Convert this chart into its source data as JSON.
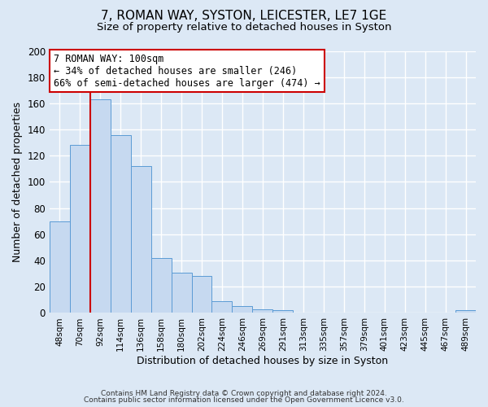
{
  "title": "7, ROMAN WAY, SYSTON, LEICESTER, LE7 1GE",
  "subtitle": "Size of property relative to detached houses in Syston",
  "xlabel": "Distribution of detached houses by size in Syston",
  "ylabel": "Number of detached properties",
  "bar_labels": [
    "48sqm",
    "70sqm",
    "92sqm",
    "114sqm",
    "136sqm",
    "158sqm",
    "180sqm",
    "202sqm",
    "224sqm",
    "246sqm",
    "269sqm",
    "291sqm",
    "313sqm",
    "335sqm",
    "357sqm",
    "379sqm",
    "401sqm",
    "423sqm",
    "445sqm",
    "467sqm",
    "489sqm"
  ],
  "bar_values": [
    70,
    128,
    163,
    136,
    112,
    42,
    31,
    28,
    9,
    5,
    3,
    2,
    0,
    0,
    0,
    0,
    0,
    0,
    0,
    0,
    2
  ],
  "bar_color": "#c6d9f0",
  "bar_edge_color": "#5b9bd5",
  "ylim": [
    0,
    200
  ],
  "yticks": [
    0,
    20,
    40,
    60,
    80,
    100,
    120,
    140,
    160,
    180,
    200
  ],
  "redline_index": 2,
  "annotation_title": "7 ROMAN WAY: 100sqm",
  "annotation_line1": "← 34% of detached houses are smaller (246)",
  "annotation_line2": "66% of semi-detached houses are larger (474) →",
  "annotation_box_color": "#ffffff",
  "annotation_box_edge": "#cc0000",
  "redline_color": "#cc0000",
  "footer1": "Contains HM Land Registry data © Crown copyright and database right 2024.",
  "footer2": "Contains public sector information licensed under the Open Government Licence v3.0.",
  "background_color": "#dce8f5",
  "plot_background": "#dce8f5",
  "grid_color": "#ffffff",
  "title_fontsize": 11,
  "subtitle_fontsize": 9.5
}
